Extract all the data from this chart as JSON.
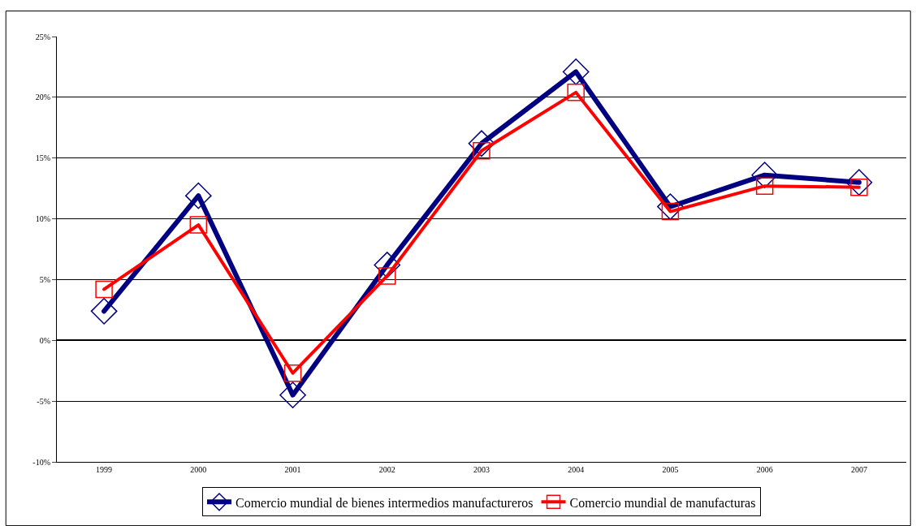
{
  "chart_data": {
    "type": "line",
    "categories": [
      "1999",
      "2000",
      "2001",
      "2002",
      "2003",
      "2004",
      "2005",
      "2006",
      "2007"
    ],
    "series": [
      {
        "name": "Comercio mundial de bienes intermedios manufactureros",
        "color": "#000080",
        "marker": "diamond",
        "values": [
          2.4,
          11.9,
          -4.5,
          6.2,
          16.2,
          22.1,
          11.0,
          13.6,
          13.0
        ]
      },
      {
        "name": "Comercio mundial de manufacturas",
        "color": "#ff0000",
        "marker": "square",
        "values": [
          4.2,
          9.5,
          -2.7,
          5.3,
          15.6,
          20.4,
          10.6,
          12.7,
          12.6
        ]
      }
    ],
    "ylim": [
      -10,
      25
    ],
    "yticks": [
      {
        "value": -10,
        "label": "-10%"
      },
      {
        "value": -5,
        "label": "-5%"
      },
      {
        "value": 0,
        "label": "0%"
      },
      {
        "value": 5,
        "label": "5%"
      },
      {
        "value": 10,
        "label": "10%"
      },
      {
        "value": 15,
        "label": "15%"
      },
      {
        "value": 20,
        "label": "20%"
      },
      {
        "value": 25,
        "label": "25%"
      }
    ],
    "grid": "y",
    "legend": "bottom",
    "line_style": "solid"
  }
}
